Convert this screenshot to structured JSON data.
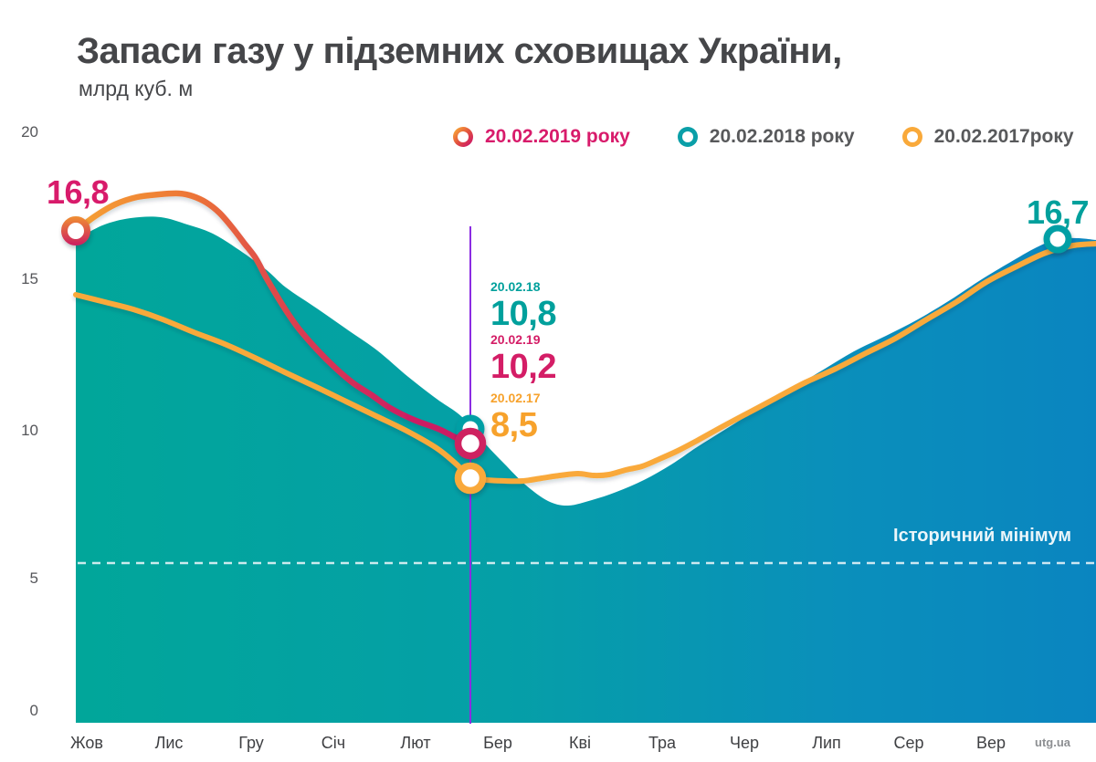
{
  "title": "Запаси газу у підземних сховищах України,",
  "subtitle": "млрд куб. м",
  "watermark": "utg.ua",
  "colors": {
    "teal": "#00a79b",
    "blue": "#0b86c0",
    "pink": "#d41d66",
    "orange": "#f9a93a",
    "purple": "#8b2be2",
    "title_text": "#454649",
    "legend_text": "#58595b"
  },
  "legend": [
    {
      "label": "20.02.2019 року",
      "marker": "ring-gradient-orange-pink"
    },
    {
      "label": "20.02.2018 року",
      "marker": "ring-teal"
    },
    {
      "label": "20.02.2017року",
      "marker": "ring-orange"
    }
  ],
  "axis": {
    "y": [
      "20",
      "15",
      "10",
      "5",
      "0"
    ],
    "x": [
      "Жов",
      "Лис",
      "Гру",
      "Січ",
      "Лют",
      "Бер",
      "Кві",
      "Тра",
      "Чер",
      "Лип",
      "Сер",
      "Вер"
    ]
  },
  "labels": {
    "start_2019": "16,8",
    "end_2018": "16,7"
  },
  "event": {
    "annotations": [
      {
        "date": "20.02.18",
        "value": "10,8"
      },
      {
        "date": "20.02.19",
        "value": "10,2"
      },
      {
        "date": "20.02.17",
        "value": "8,5"
      }
    ]
  },
  "reference": {
    "label": "Історичний мінімум",
    "value": 5.5
  },
  "chart_data": {
    "type": "area",
    "title": "Запаси газу у підземних сховищах України",
    "ylabel": "млрд куб. м",
    "ylim": [
      0,
      20
    ],
    "yticks": [
      0,
      5,
      10,
      15,
      20
    ],
    "grid": false,
    "legend_position": "top",
    "categories": [
      "Жов",
      "Лис",
      "Гру",
      "Січ",
      "Лют",
      "Бер",
      "Кві",
      "Тра",
      "Чер",
      "Лип",
      "Сер",
      "Вер"
    ],
    "series": [
      {
        "name": "20.02.2019 року",
        "style": "line-gradient-orange-to-pink",
        "color": "#cf1e63",
        "values": [
          16.8,
          18.0,
          16.3,
          12.0,
          10.4,
          null,
          null,
          null,
          null,
          null,
          null,
          null
        ],
        "key_points": [
          {
            "label": "16,8",
            "position": "Жов",
            "value": 16.8
          },
          {
            "label": "10,2",
            "position": "20 лютого",
            "value": 10.2
          }
        ]
      },
      {
        "name": "20.02.2018 року",
        "style": "filled-area-teal-to-blue-gradient",
        "color": "#00a79b",
        "values": [
          16.7,
          17.3,
          16.1,
          14.0,
          12.1,
          9.1,
          7.5,
          8.6,
          10.4,
          12.2,
          13.7,
          15.4
        ],
        "key_points": [
          {
            "label": "10,8",
            "position": "20 лютого",
            "value": 10.8
          },
          {
            "label": "16,7",
            "position": "кінець Вер",
            "value": 16.7
          }
        ]
      },
      {
        "name": "20.02.2017 року",
        "style": "line",
        "color": "#f9a93a",
        "values": [
          14.6,
          13.8,
          12.6,
          11.2,
          9.9,
          8.3,
          8.5,
          9.1,
          10.6,
          12.0,
          13.4,
          15.2
        ],
        "key_points": [
          {
            "label": "8,5",
            "position": "20 лютого",
            "value": 8.5
          }
        ]
      }
    ],
    "reference_line": {
      "label": "Історичний мінімум",
      "value": 5.5,
      "style": "dashed-white"
    },
    "event_line": {
      "date": "20 лютого",
      "style": "vertical-purple"
    }
  }
}
